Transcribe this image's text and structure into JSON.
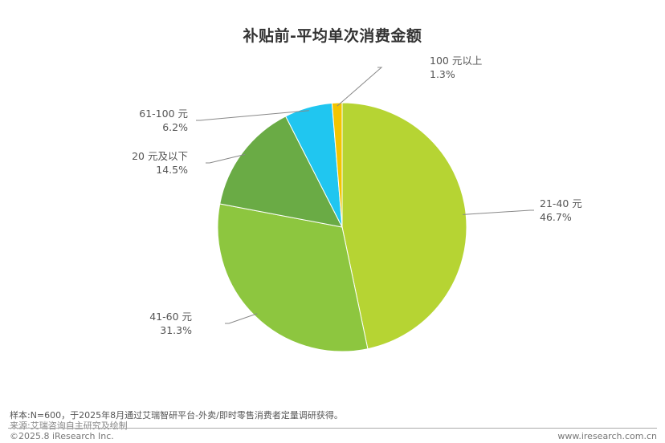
{
  "chart_data": {
    "type": "pie",
    "title": "补贴前-平均单次消费金额",
    "slices": [
      {
        "name": "21-40 元",
        "value": 46.7,
        "label": "46.7%",
        "color": "#b6d433"
      },
      {
        "name": "41-60 元",
        "value": 31.3,
        "label": "31.3%",
        "color": "#8dc63f"
      },
      {
        "name": "20 元及以下",
        "value": 14.5,
        "label": "14.5%",
        "color": "#6aab45"
      },
      {
        "name": "61-100 元",
        "value": 6.2,
        "label": "6.2%",
        "color": "#20c6f0"
      },
      {
        "name": "100 元以上",
        "value": 1.3,
        "label": "1.3%",
        "color": "#f2c500"
      }
    ],
    "start": "12 o'clock",
    "direction": "clockwise"
  },
  "footer": {
    "note": "样本:N=600，于2025年8月通过艾瑞智研平台-外卖/即时零售消费者定量调研获得。",
    "source": "来源:艾瑞咨询自主研究及绘制",
    "copyright": "©2025.8 iResearch Inc.",
    "website": "www.iresearch.com.cn"
  }
}
